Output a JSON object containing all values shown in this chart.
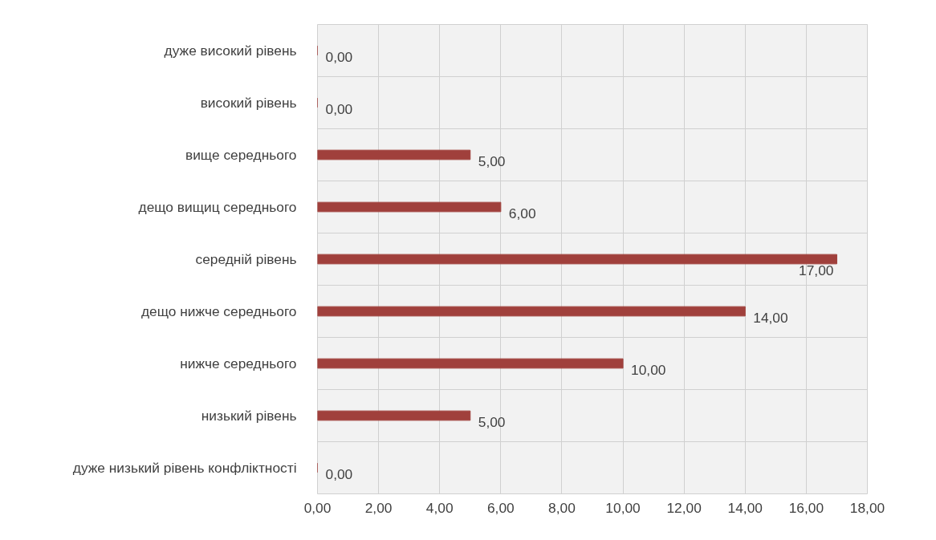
{
  "chart_data": {
    "type": "bar",
    "orientation": "horizontal",
    "categories": [
      "дуже високий рівень",
      "високий рівень",
      "вище середнього",
      "дещо вищиц середнього",
      "середній рівень",
      "дещо нижче середнього",
      "нижче середнього",
      "низький рівень",
      "дуже низький рівень конфліктності"
    ],
    "values": [
      0,
      0,
      5,
      6,
      17,
      14,
      10,
      5,
      0
    ],
    "value_labels": [
      "0,00",
      "0,00",
      "5,00",
      "6,00",
      "17,00",
      "14,00",
      "10,00",
      "5,00",
      "0,00"
    ],
    "color": "#a0403c",
    "xlim": [
      0,
      18
    ],
    "xticks": [
      {
        "value": 0,
        "label": "0,00"
      },
      {
        "value": 2,
        "label": "2,00"
      },
      {
        "value": 4,
        "label": "4,00"
      },
      {
        "value": 6,
        "label": "6,00"
      },
      {
        "value": 8,
        "label": "8,00"
      },
      {
        "value": 10,
        "label": "10,00"
      },
      {
        "value": 12,
        "label": "12,00"
      },
      {
        "value": 14,
        "label": "14,00"
      },
      {
        "value": 16,
        "label": "16,00"
      },
      {
        "value": 18,
        "label": "18,00"
      }
    ],
    "grid": true
  }
}
